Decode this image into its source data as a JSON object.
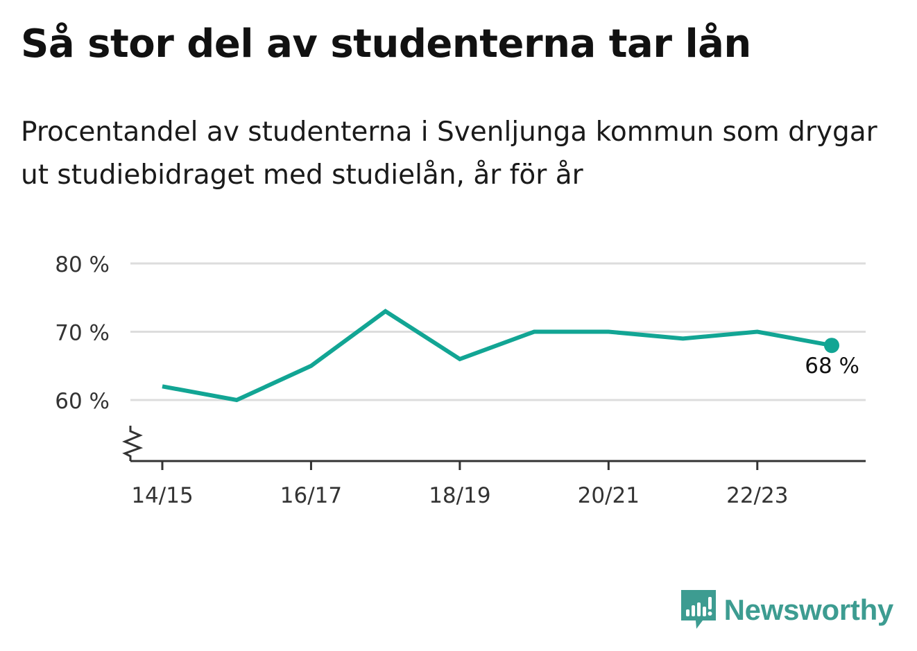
{
  "title": "Så stor del av studenterna tar lån",
  "subtitle": "Procentandel av studenterna i Svenljunga kommun som drygar ut studiebidraget med studielån, år för år",
  "brand": {
    "name": "Newsworthy",
    "icon": "newsworthy-logo-icon",
    "color": "#3d9c91"
  },
  "colors": {
    "line": "#12a594",
    "grid": "#dddddd",
    "axis": "#333333",
    "tick_text": "#333333"
  },
  "chart_data": {
    "type": "line",
    "title": "Så stor del av studenterna tar lån",
    "subtitle": "Procentandel av studenterna i Svenljunga kommun som drygar ut studiebidraget med studielån, år för år",
    "x": [
      "14/15",
      "15/16",
      "16/17",
      "17/18",
      "18/19",
      "19/20",
      "20/21",
      "21/22",
      "22/23",
      "23/24"
    ],
    "x_tick_labels": [
      "14/15",
      "16/17",
      "18/19",
      "20/21",
      "22/23"
    ],
    "series": [
      {
        "values": [
          62,
          60,
          65,
          73,
          66,
          70,
          70,
          69,
          70,
          68
        ]
      }
    ],
    "ylim": [
      51,
      80
    ],
    "y_ticks": [
      60,
      70,
      80
    ],
    "y_tick_labels": [
      "60 %",
      "70 %",
      "80 %"
    ],
    "axis_break": true,
    "grid": true,
    "last_point_label": "68 %"
  }
}
